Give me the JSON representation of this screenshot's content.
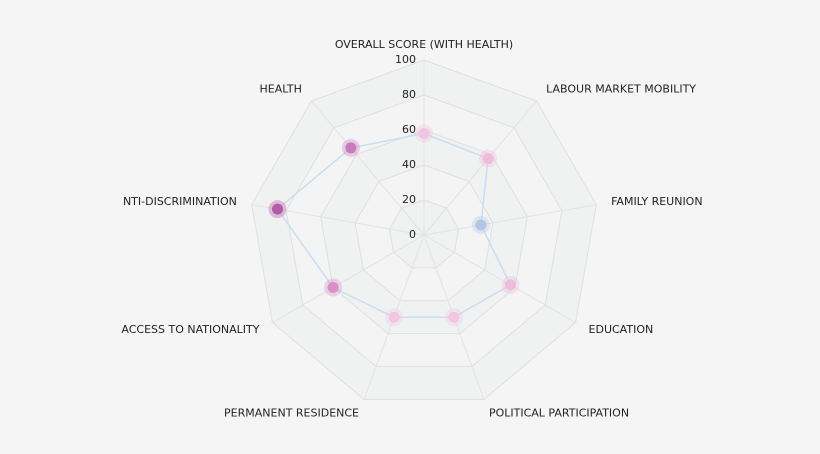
{
  "chart_data": {
    "type": "radar",
    "categories": [
      "OVERALL SCORE (WITH HEALTH)",
      "LABOUR MARKET MOBILITY",
      "FAMILY REUNION",
      "EDUCATION",
      "POLITICAL PARTICIPATION",
      "PERMANENT RESIDENCE",
      "ACCESS TO NATIONALITY",
      "NTI-DISCRIMINATION",
      "HEALTH"
    ],
    "values": [
      58,
      57,
      33,
      57,
      50,
      50,
      60,
      85,
      65
    ],
    "point_colors": [
      "#f2c4e0",
      "#efbcdc",
      "#b4c6e4",
      "#efbcdc",
      "#f0c6e0",
      "#f0c6e0",
      "#d990c6",
      "#b55aa8",
      "#c97bba"
    ],
    "color": "#c9dff0",
    "ylim": [
      0,
      100
    ],
    "yticks": [
      0,
      20,
      40,
      60,
      80,
      100
    ],
    "grid": true
  }
}
